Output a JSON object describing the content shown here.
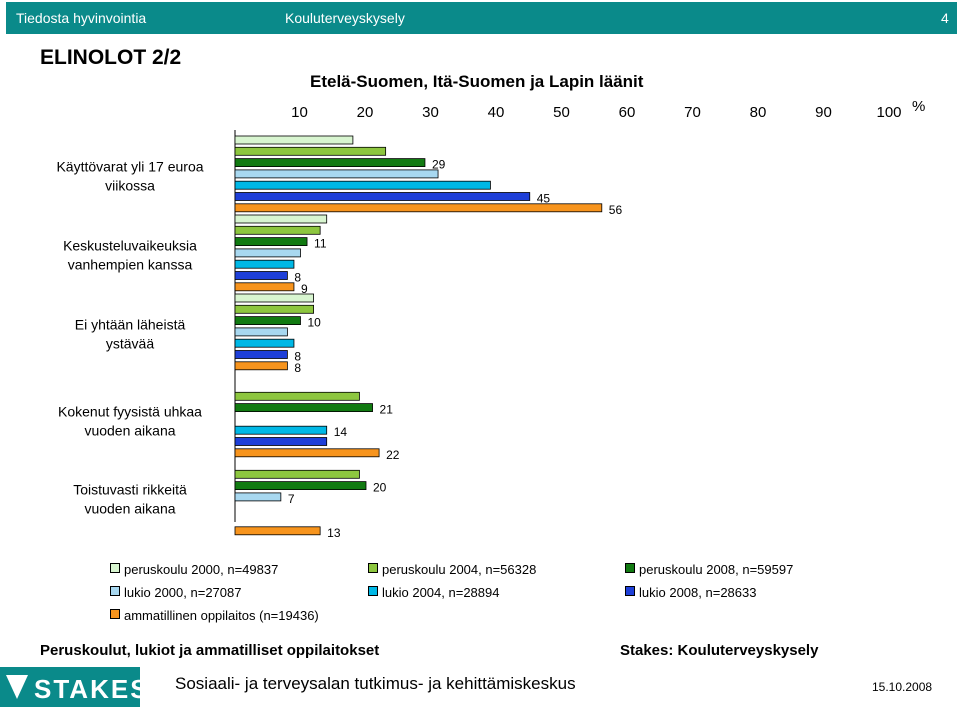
{
  "header": {
    "left": "Tiedosta hyvinvointia",
    "center": "Kouluterveyskysely",
    "page_number": "4",
    "bar_color": "#0a8a8a"
  },
  "page_title": "ELINOLOT 2/2",
  "chart_data": {
    "type": "bar",
    "orientation": "horizontal",
    "title": "Etelä-Suomen, Itä-Suomen ja Lapin läänit",
    "unit_label": "%",
    "xlim": [
      0,
      100
    ],
    "ticks": [
      "10",
      "20",
      "30",
      "40",
      "50",
      "60",
      "70",
      "80",
      "90",
      "100"
    ],
    "categories": [
      [
        "Käyttövarat yli 17 euroa",
        "viikossa"
      ],
      [
        "Keskusteluvaikeuksia",
        "vanhempien kanssa"
      ],
      [
        "Ei yhtään läheistä",
        "ystävää"
      ],
      [
        "Kokenut fyysistä uhkaa",
        "vuoden aikana"
      ],
      [
        "Toistuvasti rikkeitä",
        "vuoden aikana"
      ]
    ],
    "series": [
      {
        "name": "peruskoulu 2000, n=49837",
        "color": "#d8f5d0",
        "values": [
          18,
          14,
          12,
          null,
          null
        ],
        "labels": [
          null,
          null,
          null,
          null,
          null
        ]
      },
      {
        "name": "peruskoulu 2004, n=56328",
        "color": "#8dc63f",
        "values": [
          23,
          13,
          12,
          19,
          19
        ],
        "labels": [
          null,
          null,
          null,
          null,
          null
        ]
      },
      {
        "name": "peruskoulu 2008, n=59597",
        "color": "#117a11",
        "values": [
          29,
          11,
          10,
          21,
          20
        ],
        "labels": [
          "29",
          "11",
          "10",
          "21",
          "20"
        ]
      },
      {
        "name": "lukio 2000, n=27087",
        "color": "#a8d8f0",
        "values": [
          31,
          10,
          8,
          null,
          7
        ],
        "labels": [
          null,
          null,
          null,
          null,
          "7"
        ]
      },
      {
        "name": "lukio 2004, n=28894",
        "color": "#00b8e6",
        "values": [
          39,
          9,
          9,
          14,
          null
        ],
        "labels": [
          null,
          null,
          null,
          "14",
          null
        ]
      },
      {
        "name": "lukio 2008, n=28633",
        "color": "#1e3fd8",
        "values": [
          45,
          8,
          8,
          14,
          null
        ],
        "labels": [
          "45",
          "8",
          "8",
          null,
          null
        ]
      },
      {
        "name": "ammatillinen oppilaitos (n=19436)",
        "color": "#f7941d",
        "values": [
          56,
          9,
          8,
          22,
          13
        ],
        "labels": [
          "56",
          "9",
          "8",
          "22",
          "13"
        ]
      }
    ]
  },
  "footer": {
    "left": "Peruskoulut, lukiot ja ammatilliset oppilaitokset",
    "right": "Stakes: Kouluterveyskysely",
    "center": "Sosiaali- ja terveysalan tutkimus- ja kehittämiskeskus",
    "date": "15.10.2008",
    "logo_text": "STAKES"
  }
}
